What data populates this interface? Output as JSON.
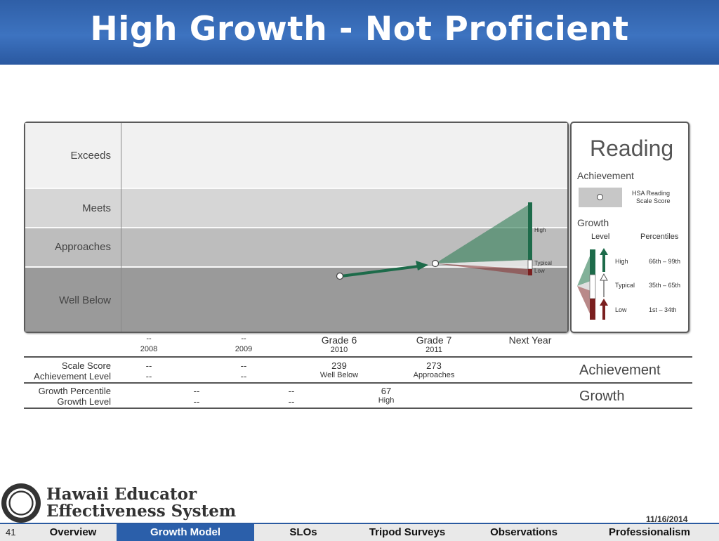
{
  "slide": {
    "title": "High Growth - Not Proficient",
    "page_number": "41",
    "date": "11/16/2014"
  },
  "brand": {
    "line1": "Hawaii Educator",
    "line2": "Effectiveness System"
  },
  "bands": [
    "Exceeds",
    "Meets",
    "Approaches",
    "Well Below"
  ],
  "growth_cone_labels": {
    "high": "High",
    "typical": "Typical",
    "low": "Low"
  },
  "legend": {
    "title": "Reading",
    "achievement_label": "Achievement",
    "marker_label_1": "HSA Reading",
    "marker_label_2": "Scale Score",
    "growth_label": "Growth",
    "level_header": "Level",
    "percentiles_header": "Percentiles",
    "rows": [
      {
        "level": "High",
        "range": "66th – 99th"
      },
      {
        "level": "Typical",
        "range": "35th – 65th"
      },
      {
        "level": "Low",
        "range": "1st – 34th"
      }
    ]
  },
  "table": {
    "columns": [
      {
        "grade": "--",
        "year": "2008",
        "scale": "--",
        "ach": "--"
      },
      {
        "grade": "--",
        "year": "2009",
        "scale": "--",
        "ach": "--"
      },
      {
        "grade": "Grade 6",
        "year": "2010",
        "scale": "239",
        "ach": "Well Below"
      },
      {
        "grade": "Grade 7",
        "year": "2011",
        "scale": "273",
        "ach": "Approaches"
      },
      {
        "grade": "Next Year",
        "year": "",
        "scale": "",
        "ach": ""
      }
    ],
    "growth": [
      {
        "pct": "--",
        "lvl": "--"
      },
      {
        "pct": "--",
        "lvl": "--"
      },
      {
        "pct": "67",
        "lvl": "High"
      }
    ],
    "row_labels": {
      "scale": "Scale Score",
      "ach": "Achievement Level",
      "gp": "Growth Percentile",
      "gl": "Growth Level"
    },
    "section_achievement": "Achievement",
    "section_growth": "Growth"
  },
  "nav": [
    {
      "label": "Overview",
      "active": false
    },
    {
      "label": "Growth Model",
      "active": true
    },
    {
      "label": "SLOs",
      "active": false
    },
    {
      "label": "Tripod Surveys",
      "active": false
    },
    {
      "label": "Observations",
      "active": false
    },
    {
      "label": "Professionalism",
      "active": false
    }
  ],
  "colors": {
    "title_bg": "#3368b3",
    "growth_high": "#1d6b4a",
    "growth_low": "#7a1f1f",
    "nav_active": "#2b5faa"
  }
}
